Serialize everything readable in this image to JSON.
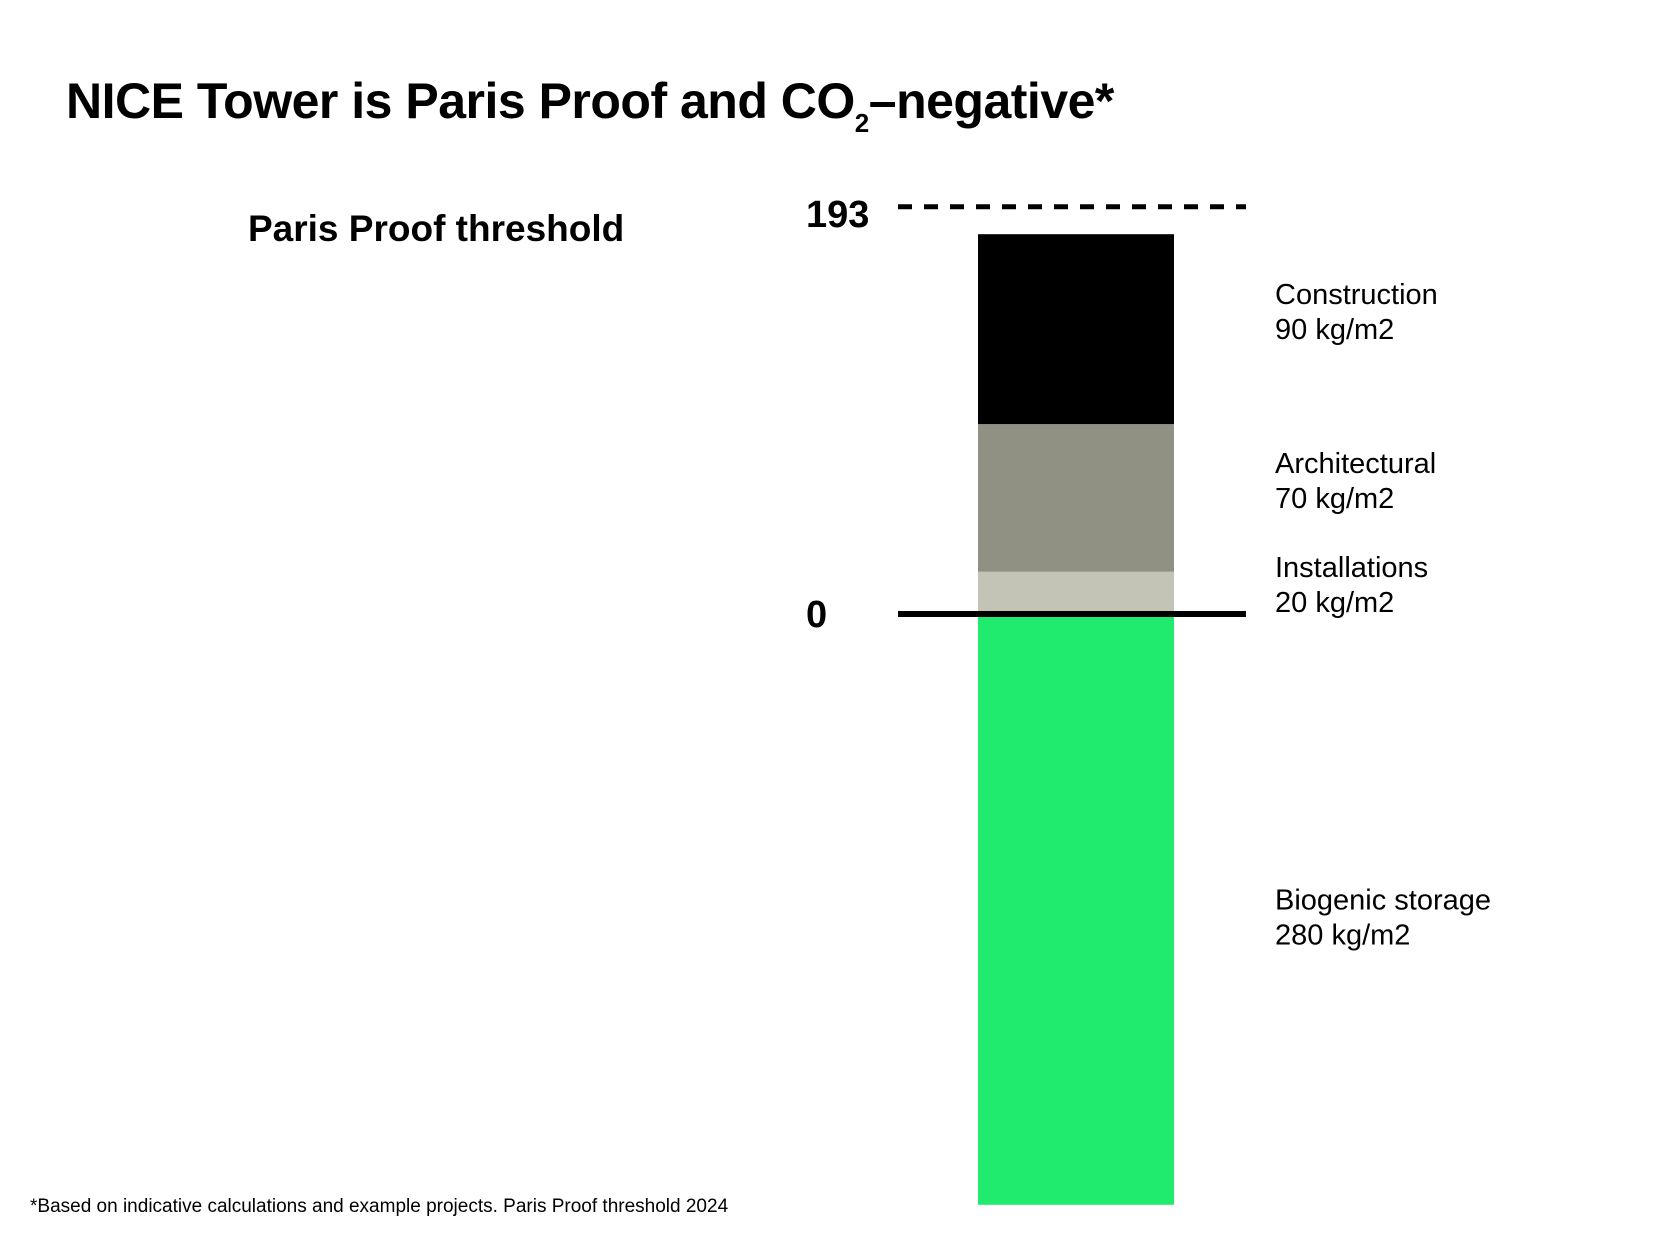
{
  "title": {
    "prefix": "NICE Tower is Paris Proof and CO",
    "subscript": "2",
    "suffix": "–negative*"
  },
  "threshold_label": "Paris Proof threshold",
  "footnote": "*Based on indicative calculations and example projects. Paris Proof threshold 2024",
  "chart_data": {
    "type": "bar",
    "stacked": true,
    "unit": "kg/m2",
    "threshold": {
      "value": 193,
      "label": "193",
      "style": "dashed"
    },
    "zero_line": {
      "value": 0,
      "label": "0"
    },
    "ylim": [
      -280,
      193
    ],
    "series": [
      {
        "name": "Installations",
        "value": 20,
        "value_label": "20 kg/m2",
        "color": "#c3c3b6"
      },
      {
        "name": "Architectural",
        "value": 70,
        "value_label": "70 kg/m2",
        "color": "#909083"
      },
      {
        "name": "Construction",
        "value": 90,
        "value_label": "90 kg/m2",
        "color": "#000000"
      },
      {
        "name": "Biogenic storage",
        "value": -280,
        "value_label": "280 kg/m2",
        "color": "#21eb6e"
      }
    ]
  }
}
